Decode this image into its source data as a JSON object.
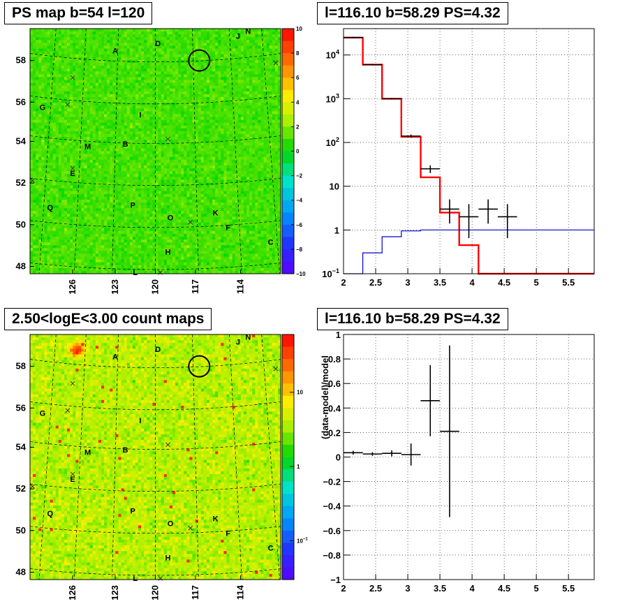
{
  "chart_data": [
    {
      "type": "heatmap",
      "title": "PS map b=54 l=120",
      "xticks": [
        "126",
        "123",
        "120",
        "117",
        "114"
      ],
      "yticks": [
        "58",
        "56",
        "54",
        "52",
        "50",
        "48"
      ],
      "colorbar_ticks": [
        "10",
        "8",
        "6",
        "4",
        "2",
        "0",
        "−2",
        "−4",
        "−6",
        "−8",
        "−10"
      ],
      "zlim": [
        -10,
        10
      ],
      "source_labels": [
        "A",
        "D",
        "J",
        "N",
        "G",
        "I",
        "M",
        "B",
        "E",
        "Q",
        "P",
        "O",
        "K",
        "F",
        "C",
        "H",
        "L"
      ],
      "circle": {
        "l": 117.1,
        "b": 57.9
      }
    },
    {
      "type": "line",
      "title": "l=116.10 b=58.29 PS=4.32",
      "xlim": [
        2,
        5.9
      ],
      "ylim": [
        0.1,
        40000
      ],
      "log_y": true,
      "grid": true,
      "xticks": [
        "2",
        "2.5",
        "3",
        "3.5",
        "4",
        "4.5",
        "5",
        "5.5"
      ],
      "yticks": [
        {
          "v": 0.1,
          "t": "10",
          "sup": "−1"
        },
        {
          "v": 1,
          "t": "1",
          "sup": ""
        },
        {
          "v": 10,
          "t": "10",
          "sup": ""
        },
        {
          "v": 100,
          "t": "10",
          "sup": "2"
        },
        {
          "v": 1000,
          "t": "10",
          "sup": "3"
        },
        {
          "v": 10000,
          "t": "10",
          "sup": "4"
        }
      ],
      "series": [
        {
          "color": "#ff0000",
          "kind": "step",
          "edges": [
            2.0,
            2.3,
            2.6,
            2.9,
            3.2,
            3.5,
            3.8,
            4.1,
            4.4,
            5.9
          ],
          "values": [
            25000,
            6000,
            1000,
            135,
            16,
            2.5,
            0.45,
            0.1,
            0.1
          ]
        },
        {
          "color": "#0000cc",
          "kind": "step",
          "edges": [
            2.0,
            2.3,
            2.6,
            2.9,
            3.2,
            3.5,
            3.8,
            5.9
          ],
          "values": [
            0.1,
            0.3,
            0.7,
            0.95,
            1.0,
            1.0,
            1.0
          ]
        },
        {
          "color": "#000000",
          "kind": "errorbar",
          "points": [
            {
              "x": 2.15,
              "y": 25000,
              "xerr": 0.15,
              "lo": 24000,
              "hi": 26000
            },
            {
              "x": 2.45,
              "y": 6000,
              "xerr": 0.15,
              "lo": 5800,
              "hi": 6200
            },
            {
              "x": 2.75,
              "y": 1000,
              "xerr": 0.15,
              "lo": 960,
              "hi": 1040
            },
            {
              "x": 3.05,
              "y": 140,
              "xerr": 0.15,
              "lo": 128,
              "hi": 152
            },
            {
              "x": 3.35,
              "y": 25,
              "xerr": 0.15,
              "lo": 20,
              "hi": 30
            },
            {
              "x": 3.65,
              "y": 3,
              "xerr": 0.15,
              "lo": 1.4,
              "hi": 5
            },
            {
              "x": 3.95,
              "y": 2,
              "xerr": 0.15,
              "lo": 0.65,
              "hi": 3.9
            },
            {
              "x": 4.25,
              "y": 3,
              "xerr": 0.15,
              "lo": 1.4,
              "hi": 5
            },
            {
              "x": 4.55,
              "y": 2,
              "xerr": 0.15,
              "lo": 0.65,
              "hi": 3.9
            }
          ]
        }
      ]
    },
    {
      "type": "heatmap",
      "title": "2.50<logE<3.00 count maps",
      "xticks": [
        "126",
        "123",
        "120",
        "117",
        "114"
      ],
      "yticks": [
        "58",
        "56",
        "54",
        "52",
        "50",
        "48"
      ],
      "colorbar_ticks": [
        {
          "t": "10",
          "sup": ""
        },
        {
          "t": "1",
          "sup": ""
        },
        {
          "t": "10",
          "sup": "−1"
        }
      ],
      "zlim": [
        0.03,
        60
      ],
      "log_z": true,
      "source_labels": [
        "A",
        "D",
        "J",
        "N",
        "G",
        "I",
        "M",
        "B",
        "E",
        "Q",
        "P",
        "O",
        "K",
        "F",
        "C",
        "H",
        "L"
      ],
      "circle": {
        "l": 117.1,
        "b": 57.9
      }
    },
    {
      "type": "scatter",
      "title": "l=116.10 b=58.29 PS=4.32",
      "ylabel": "(data-model)/model",
      "xlim": [
        2,
        5.9
      ],
      "ylim": [
        -1,
        1
      ],
      "grid": true,
      "xticks": [
        "2",
        "2.5",
        "3",
        "3.5",
        "4",
        "4.5",
        "5",
        "5.5"
      ],
      "yticks": [
        "1",
        "0.8",
        "0.6",
        "0.4",
        "0.2",
        "0",
        "−0.2",
        "−0.4",
        "−0.6",
        "−0.8",
        "−1"
      ],
      "series": [
        {
          "color": "#000000",
          "kind": "errorbar",
          "points": [
            {
              "x": 2.15,
              "y": 0.035,
              "xerr": 0.15,
              "lo": 0.02,
              "hi": 0.05
            },
            {
              "x": 2.45,
              "y": 0.025,
              "xerr": 0.15,
              "lo": 0.01,
              "hi": 0.04
            },
            {
              "x": 2.75,
              "y": 0.03,
              "xerr": 0.15,
              "lo": 0.005,
              "hi": 0.055
            },
            {
              "x": 3.05,
              "y": 0.02,
              "xerr": 0.15,
              "lo": -0.07,
              "hi": 0.11
            },
            {
              "x": 3.35,
              "y": 0.46,
              "xerr": 0.15,
              "lo": 0.17,
              "hi": 0.75
            },
            {
              "x": 3.65,
              "y": 0.21,
              "xerr": 0.15,
              "lo": -0.49,
              "hi": 0.91
            }
          ]
        }
      ]
    }
  ]
}
